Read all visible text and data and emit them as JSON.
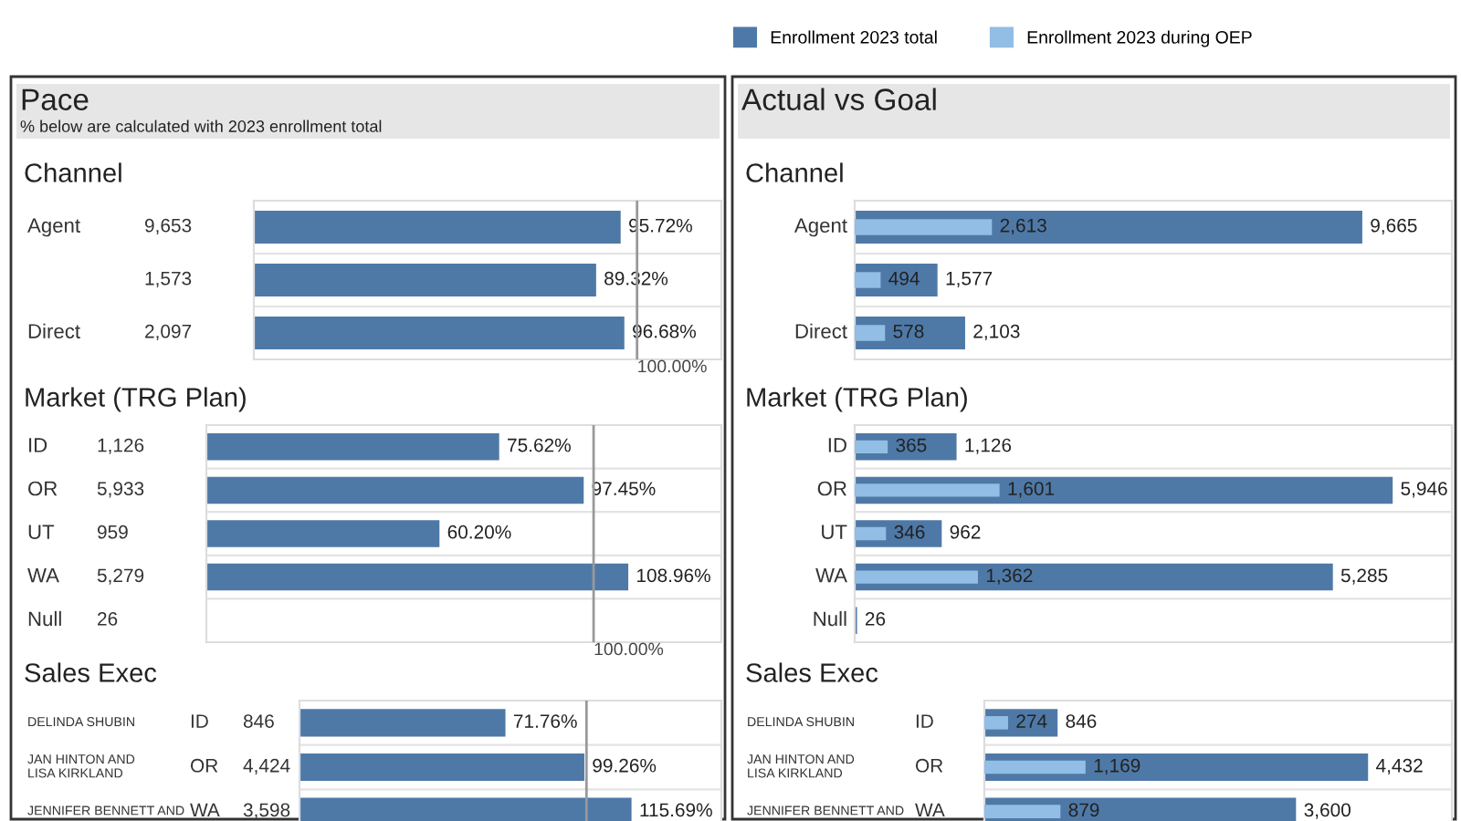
{
  "chart_data": [
    {
      "type": "bar",
      "orientation": "horizontal",
      "title": "Channel",
      "categories": [
        "Agent",
        null,
        "Direct"
      ],
      "y2_categories": [
        "9,653",
        "1,573",
        "2,097"
      ],
      "series": [
        {
          "color": "#4e79a7",
          "values": [
            95.72,
            89.32,
            96.68
          ],
          "value_labels": [
            "95.72%",
            "89.32%",
            "96.68%"
          ]
        }
      ],
      "xlim": [
        0,
        122
      ],
      "ref_lines": [
        {
          "axis": "x",
          "value": 100,
          "label": "100.00%",
          "color": "#999999"
        }
      ],
      "annotations": [
        "Pace",
        "% below are calculated with 2023 enrollment total"
      ]
    },
    {
      "type": "bar",
      "orientation": "horizontal",
      "title": "Market (TRG Plan)",
      "categories": [
        "ID",
        "OR",
        "UT",
        "WA",
        "Null"
      ],
      "y2_categories": [
        "1,126",
        "5,933",
        "959",
        "5,279",
        "26"
      ],
      "series": [
        {
          "color": "#4e79a7",
          "values": [
            75.62,
            97.45,
            60.2,
            108.96,
            null
          ],
          "value_labels": [
            "75.62%",
            "97.45%",
            "60.20%",
            "108.96%",
            null
          ]
        }
      ],
      "xlim": [
        0,
        133
      ],
      "ref_lines": [
        {
          "axis": "x",
          "value": 100,
          "label": "100.00%",
          "color": "#999999"
        }
      ]
    },
    {
      "type": "bar",
      "orientation": "horizontal",
      "title": "Sales Exec",
      "categories": [
        "DELINDA SHUBIN",
        "JAN HINTON AND\nLISA KIRKLAND",
        "JENNIFER BENNETT AND"
      ],
      "y2_categories": [
        "ID",
        "OR",
        "WA"
      ],
      "series": [
        {
          "color": "#4e79a7",
          "values": [
            71.76,
            99.26,
            115.69
          ],
          "value_labels": [
            "71.76%",
            "99.26%",
            "115.69%"
          ]
        }
      ],
      "xlim": [
        0,
        147
      ],
      "ref_lines": [
        {
          "axis": "x",
          "value": 100,
          "label": null,
          "color": "#999999"
        }
      ],
      "annotations": [
        "846",
        "4,424",
        "3,598"
      ]
    },
    {
      "type": "bar",
      "orientation": "horizontal",
      "title": "Channel",
      "categories": [
        "Agent",
        null,
        "Direct"
      ],
      "legend": "top",
      "series": [
        {
          "name": "Enrollment 2023 total",
          "color": "#4e79a7",
          "values": [
            9665,
            1577,
            2103
          ],
          "value_labels": [
            "9,665",
            "1,577",
            "2,103"
          ]
        },
        {
          "name": "Enrollment 2023 during OEP",
          "color": "#92bde5",
          "values": [
            2613,
            494,
            578
          ],
          "value_labels": [
            "2,613",
            "494",
            "578"
          ]
        }
      ],
      "xlim": [
        0,
        11370
      ],
      "annotations": [
        "Actual vs Goal"
      ]
    },
    {
      "type": "bar",
      "orientation": "horizontal",
      "title": "Market (TRG Plan)",
      "categories": [
        "ID",
        "OR",
        "UT",
        "WA",
        "Null"
      ],
      "series": [
        {
          "color": "#4e79a7",
          "values": [
            1126,
            5946,
            962,
            5285,
            26
          ],
          "value_labels": [
            "1,126",
            "5,946",
            "962",
            "5,285",
            "26"
          ]
        },
        {
          "color": "#92bde5",
          "values": [
            365,
            1601,
            346,
            1362,
            null
          ],
          "value_labels": [
            "365",
            "1,601",
            "346",
            "1,362",
            null
          ]
        }
      ],
      "xlim": [
        0,
        6600
      ]
    },
    {
      "type": "bar",
      "orientation": "horizontal",
      "title": "Sales Exec",
      "categories": [
        "DELINDA SHUBIN",
        "JAN HINTON AND\nLISA KIRKLAND",
        "JENNIFER BENNETT AND"
      ],
      "y2_categories": [
        "ID",
        "OR",
        "WA"
      ],
      "series": [
        {
          "color": "#4e79a7",
          "values": [
            846,
            4432,
            3600
          ],
          "value_labels": [
            "846",
            "4,432",
            "3,600"
          ]
        },
        {
          "color": "#92bde5",
          "values": [
            274,
            1169,
            879
          ],
          "value_labels": [
            "274",
            "1,169",
            "879"
          ]
        }
      ],
      "xlim": [
        0,
        5400
      ]
    }
  ]
}
